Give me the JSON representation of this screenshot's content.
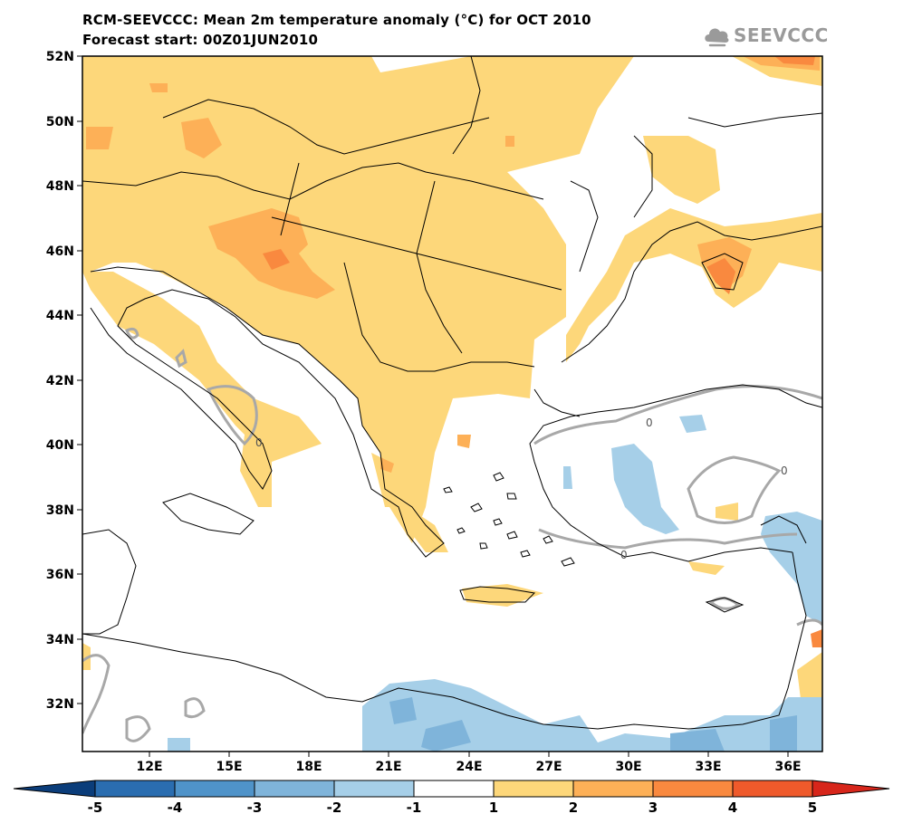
{
  "header": {
    "title_line1": "RCM-SEEVCCC: Mean 2m temperature anomaly (°C) for OCT 2010",
    "title_line2": "Forecast start: 00Z01JUN2010"
  },
  "logo": {
    "text": "SEEVCCC",
    "icon": "cloud-icon",
    "color": "#9a9a9a"
  },
  "map": {
    "lon_range": [
      9.5,
      37
    ],
    "lat_range": [
      30.5,
      52
    ],
    "lat_ticks": [
      "52N",
      "50N",
      "48N",
      "46N",
      "44N",
      "42N",
      "40N",
      "38N",
      "36N",
      "34N",
      "32N"
    ],
    "lon_ticks": [
      "12E",
      "15E",
      "18E",
      "21E",
      "24E",
      "27E",
      "30E",
      "33E",
      "36E"
    ],
    "contour_label": "0",
    "regions": [
      {
        "name": "central-europe-warm",
        "class": "1 to 2"
      },
      {
        "name": "croatia-warm",
        "class": "2 to 3"
      },
      {
        "name": "crimea-warm",
        "class": "3 to 4"
      },
      {
        "name": "turkey-cool",
        "class": "-2 to -1"
      },
      {
        "name": "libya-egypt-cool",
        "class": "-2 to -1"
      }
    ]
  },
  "colorbar": {
    "labels": [
      "-5",
      "-4",
      "-3",
      "-2",
      "-1",
      "1",
      "2",
      "3",
      "4",
      "5"
    ],
    "colors": [
      "#0b3d7a",
      "#2a6db0",
      "#4f93c9",
      "#7fb4da",
      "#a6cfe8",
      "#ffffff",
      "#fdd77a",
      "#fdb057",
      "#f9893f",
      "#ef5a2b",
      "#d7261b"
    ]
  }
}
